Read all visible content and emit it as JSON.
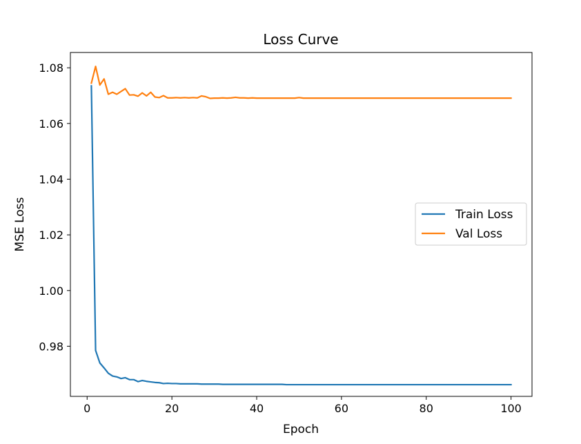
{
  "chart_data": {
    "type": "line",
    "title": "Loss Curve",
    "xlabel": "Epoch",
    "ylabel": "MSE Loss",
    "xlim": [
      -3.95,
      104.95
    ],
    "ylim": [
      0.962,
      1.0855
    ],
    "xticks": [
      0,
      20,
      40,
      60,
      80,
      100
    ],
    "yticks": [
      0.98,
      1.0,
      1.02,
      1.04,
      1.06,
      1.08
    ],
    "ytick_labels": [
      "0.98",
      "1.00",
      "1.02",
      "1.04",
      "1.06",
      "1.08"
    ],
    "grid": false,
    "legend_position": "center-right",
    "series": [
      {
        "name": "Train Loss",
        "color": "#1f77b4",
        "x": [
          1,
          2,
          3,
          4,
          5,
          6,
          7,
          8,
          9,
          10,
          11,
          12,
          13,
          14,
          15,
          16,
          17,
          18,
          19,
          20,
          21,
          22,
          23,
          24,
          25,
          26,
          27,
          28,
          29,
          30,
          31,
          32,
          33,
          34,
          35,
          36,
          37,
          38,
          39,
          40,
          41,
          42,
          43,
          44,
          45,
          46,
          47,
          48,
          49,
          50,
          51,
          52,
          53,
          54,
          55,
          56,
          57,
          58,
          59,
          60,
          61,
          62,
          63,
          64,
          65,
          66,
          67,
          68,
          69,
          70,
          71,
          72,
          73,
          74,
          75,
          76,
          77,
          78,
          79,
          80,
          81,
          82,
          83,
          84,
          85,
          86,
          87,
          88,
          89,
          90,
          91,
          92,
          93,
          94,
          95,
          96,
          97,
          98,
          99,
          100
        ],
        "values": [
          1.0735,
          0.9785,
          0.974,
          0.9722,
          0.9703,
          0.9693,
          0.969,
          0.9684,
          0.9687,
          0.968,
          0.968,
          0.9673,
          0.9677,
          0.9674,
          0.9672,
          0.967,
          0.9669,
          0.9666,
          0.9667,
          0.9666,
          0.9666,
          0.9665,
          0.9665,
          0.9665,
          0.9665,
          0.9665,
          0.9664,
          0.9664,
          0.9664,
          0.9664,
          0.9664,
          0.9663,
          0.9663,
          0.9663,
          0.9663,
          0.9663,
          0.9663,
          0.9663,
          0.9663,
          0.9663,
          0.9663,
          0.9663,
          0.9663,
          0.9663,
          0.9663,
          0.9663,
          0.9662,
          0.9662,
          0.9662,
          0.9662,
          0.9662,
          0.9662,
          0.9662,
          0.9662,
          0.9662,
          0.9662,
          0.9662,
          0.9662,
          0.9662,
          0.9662,
          0.9662,
          0.9662,
          0.9662,
          0.9662,
          0.9662,
          0.9662,
          0.9662,
          0.9662,
          0.9662,
          0.9662,
          0.9662,
          0.9662,
          0.9662,
          0.9662,
          0.9662,
          0.9662,
          0.9662,
          0.9662,
          0.9662,
          0.9662,
          0.9662,
          0.9662,
          0.9662,
          0.9662,
          0.9662,
          0.9662,
          0.9662,
          0.9662,
          0.9662,
          0.9662,
          0.9662,
          0.9662,
          0.9662,
          0.9662,
          0.9662,
          0.9662,
          0.9662,
          0.9662,
          0.9662,
          0.9662
        ]
      },
      {
        "name": "Val Loss",
        "color": "#ff7f0e",
        "x": [
          1,
          2,
          3,
          4,
          5,
          6,
          7,
          8,
          9,
          10,
          11,
          12,
          13,
          14,
          15,
          16,
          17,
          18,
          19,
          20,
          21,
          22,
          23,
          24,
          25,
          26,
          27,
          28,
          29,
          30,
          31,
          32,
          33,
          34,
          35,
          36,
          37,
          38,
          39,
          40,
          41,
          42,
          43,
          44,
          45,
          46,
          47,
          48,
          49,
          50,
          51,
          52,
          53,
          54,
          55,
          56,
          57,
          58,
          59,
          60,
          61,
          62,
          63,
          64,
          65,
          66,
          67,
          68,
          69,
          70,
          71,
          72,
          73,
          74,
          75,
          76,
          77,
          78,
          79,
          80,
          81,
          82,
          83,
          84,
          85,
          86,
          87,
          88,
          89,
          90,
          91,
          92,
          93,
          94,
          95,
          96,
          97,
          98,
          99,
          100
        ],
        "values": [
          1.0745,
          1.0805,
          1.0738,
          1.076,
          1.0705,
          1.0712,
          1.0705,
          1.0715,
          1.0725,
          1.0702,
          1.0703,
          1.0698,
          1.071,
          1.0699,
          1.0712,
          1.0695,
          1.0693,
          1.07,
          1.0692,
          1.0692,
          1.0693,
          1.0692,
          1.0693,
          1.0692,
          1.0693,
          1.0692,
          1.0699,
          1.0696,
          1.069,
          1.0691,
          1.0691,
          1.0692,
          1.0691,
          1.0692,
          1.0694,
          1.0692,
          1.0692,
          1.0691,
          1.0692,
          1.0691,
          1.0691,
          1.0691,
          1.0691,
          1.0691,
          1.0691,
          1.0691,
          1.0691,
          1.0691,
          1.0691,
          1.0693,
          1.0691,
          1.0691,
          1.0691,
          1.0691,
          1.0691,
          1.0691,
          1.0691,
          1.0691,
          1.0691,
          1.0691,
          1.0691,
          1.0691,
          1.0691,
          1.0691,
          1.0691,
          1.0691,
          1.0691,
          1.0691,
          1.0691,
          1.0691,
          1.0691,
          1.0691,
          1.0691,
          1.0691,
          1.0691,
          1.0691,
          1.0691,
          1.0691,
          1.0691,
          1.0691,
          1.0691,
          1.0691,
          1.0691,
          1.0691,
          1.0691,
          1.0691,
          1.0691,
          1.0691,
          1.0691,
          1.0691,
          1.0691,
          1.0691,
          1.0691,
          1.0691,
          1.0691,
          1.0691,
          1.0691,
          1.0691,
          1.0691,
          1.0691
        ]
      }
    ]
  }
}
